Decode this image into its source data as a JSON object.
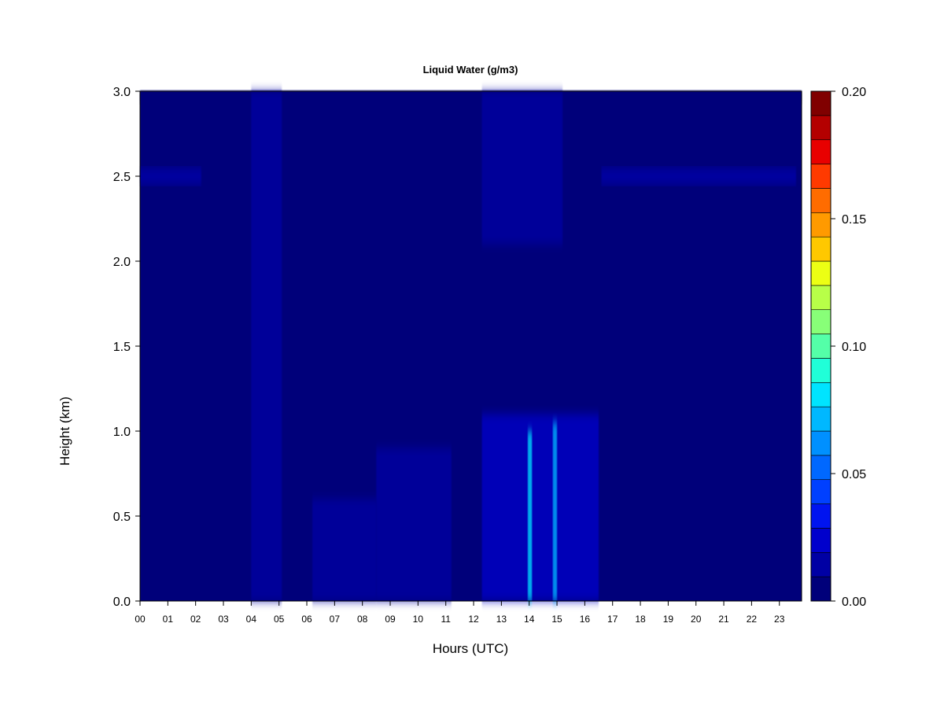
{
  "chart_data": {
    "type": "heatmap",
    "title": "Liquid Water (g/m3)",
    "xlabel": "Hours (UTC)",
    "ylabel": "Height (km)",
    "xlim": [
      0,
      23.8
    ],
    "ylim": [
      0,
      3.0
    ],
    "x_ticks": [
      "00",
      "01",
      "02",
      "03",
      "04",
      "05",
      "06",
      "07",
      "08",
      "09",
      "10",
      "11",
      "12",
      "13",
      "14",
      "15",
      "16",
      "17",
      "18",
      "19",
      "20",
      "21",
      "22",
      "23"
    ],
    "y_ticks": [
      "0.0",
      "0.5",
      "1.0",
      "1.5",
      "2.0",
      "2.5",
      "3.0"
    ],
    "colorbar": {
      "range": [
        0.0,
        0.2
      ],
      "tick_labels": [
        "0.00",
        "0.05",
        "0.10",
        "0.15",
        "0.20"
      ],
      "colors": [
        "#00007a",
        "#0000a4",
        "#0000cc",
        "#0014f0",
        "#0040ff",
        "#0068ff",
        "#0090ff",
        "#00b8ff",
        "#00e4ff",
        "#20ffd8",
        "#54ffa8",
        "#88ff78",
        "#b8ff48",
        "#ecff14",
        "#ffc800",
        "#ff9a00",
        "#ff6c00",
        "#ff3a00",
        "#e80000",
        "#b40000",
        "#800000"
      ]
    },
    "background_value": 0.0,
    "features": [
      {
        "kind": "band",
        "x": [
          0.0,
          2.2
        ],
        "y": [
          2.45,
          2.55
        ],
        "value": 0.01
      },
      {
        "kind": "band",
        "x": [
          16.6,
          23.6
        ],
        "y": [
          2.45,
          2.55
        ],
        "value": 0.012
      },
      {
        "kind": "band",
        "x": [
          0.0,
          23.8
        ],
        "y": [
          2.93,
          3.0
        ],
        "value": 0.008
      },
      {
        "kind": "column",
        "x": [
          4.0,
          5.1
        ],
        "y": [
          0.0,
          3.0
        ],
        "value": 0.012
      },
      {
        "kind": "column",
        "x": [
          6.2,
          8.5
        ],
        "y": [
          0.0,
          0.6
        ],
        "value": 0.015
      },
      {
        "kind": "column",
        "x": [
          8.5,
          11.2
        ],
        "y": [
          0.0,
          0.9
        ],
        "value": 0.014
      },
      {
        "kind": "column",
        "x": [
          12.3,
          16.5
        ],
        "y": [
          0.0,
          1.1
        ],
        "value": 0.022
      },
      {
        "kind": "column",
        "x": [
          12.3,
          15.2
        ],
        "y": [
          2.1,
          3.0
        ],
        "value": 0.01
      },
      {
        "kind": "column",
        "x": [
          13.95,
          14.1
        ],
        "y": [
          0.0,
          1.0
        ],
        "value": 0.085
      },
      {
        "kind": "column",
        "x": [
          14.85,
          15.0
        ],
        "y": [
          0.0,
          1.05
        ],
        "value": 0.07
      }
    ]
  }
}
